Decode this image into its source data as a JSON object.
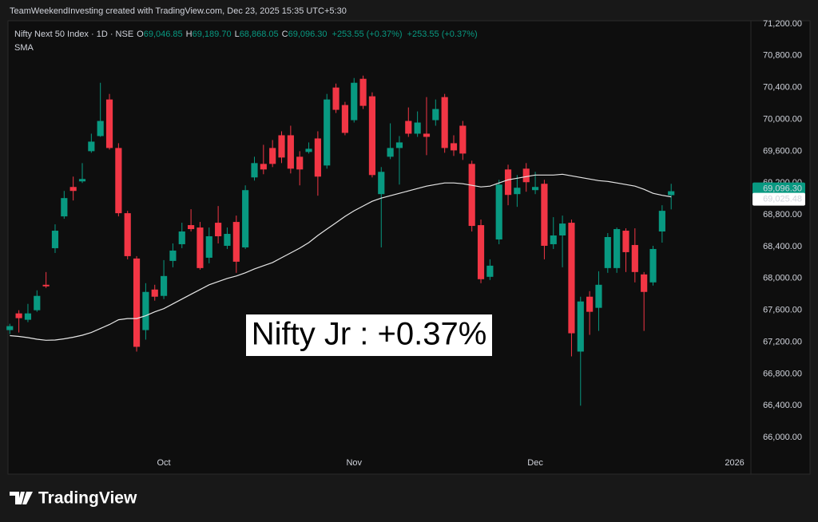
{
  "header": {
    "credit": "TeamWeekendInvesting created with TradingView.com, Dec 23, 2025 15:35 UTC+5:30"
  },
  "legend": {
    "symbol": "Nifty Next 50 Index · 1D · NSE",
    "open_label": "O",
    "open": "69,046.85",
    "high_label": "H",
    "high": "69,189.70",
    "low_label": "L",
    "low": "68,868.05",
    "close_label": "C",
    "close": "69,096.30",
    "change": "+253.55 (+0.37%)",
    "change_2": "+253.55 (+0.37%)"
  },
  "footer": {
    "brand": "TradingView"
  },
  "chart_data": {
    "type": "candlestick",
    "annotation": "Nifty Jr : +0.37%",
    "up_color": "#089981",
    "down_color": "#f23645",
    "open": [
      67350,
      67560,
      67480,
      67600,
      67920,
      68380,
      68780,
      69150,
      69220,
      69600,
      69790,
      70250,
      69640,
      68820,
      68250,
      67350,
      67860,
      67780,
      68220,
      68430,
      68670,
      68640,
      68260,
      68700,
      68410,
      68710,
      68390,
      69270,
      69440,
      69640,
      69800,
      69800,
      69530,
      69590,
      69760,
      69420,
      70400,
      70180,
      69990,
      70510,
      70290,
      69060,
      69530,
      69640,
      69980,
      69820,
      69820,
      69990,
      70280,
      69700,
      69920,
      69440,
      68670,
      68020,
      68490,
      69370,
      69060,
      69380,
      69110,
      69190,
      68430,
      68540,
      68700,
      67080,
      67770,
      67630,
      68130,
      68130,
      68600,
      68420,
      68050,
      67950,
      68590,
      69046.85
    ],
    "high": [
      67430,
      67600,
      67680,
      67850,
      68080,
      68680,
      69100,
      69280,
      69450,
      69820,
      70460,
      70320,
      69700,
      68850,
      68280,
      67940,
      67920,
      68230,
      68440,
      68700,
      68870,
      68710,
      68640,
      68910,
      68640,
      68790,
      69170,
      69530,
      69680,
      69740,
      69850,
      69920,
      69600,
      69710,
      69850,
      70320,
      70450,
      70220,
      70520,
      70550,
      70340,
      69400,
      69950,
      69790,
      70150,
      70100,
      70280,
      70250,
      70320,
      69800,
      69980,
      69480,
      68740,
      68240,
      69240,
      69430,
      69300,
      69450,
      69340,
      69240,
      68770,
      68790,
      68740,
      67770,
      67840,
      68090,
      68570,
      68640,
      68630,
      68630,
      68080,
      68410,
      68920,
      69189.7
    ],
    "low": [
      67300,
      67320,
      67450,
      67580,
      67880,
      68320,
      68750,
      68980,
      69200,
      69580,
      69780,
      69620,
      68780,
      68240,
      67080,
      67230,
      67720,
      67740,
      68140,
      68380,
      68590,
      68110,
      68190,
      68440,
      68370,
      68070,
      68370,
      69230,
      69310,
      69400,
      69450,
      69320,
      69170,
      69570,
      69040,
      69380,
      70080,
      69800,
      69960,
      70130,
      69270,
      68390,
      69500,
      69180,
      69780,
      69780,
      69550,
      69920,
      69580,
      69540,
      69490,
      68590,
      67940,
      67980,
      68430,
      68920,
      68900,
      69090,
      69060,
      68240,
      68370,
      68140,
      67020,
      66400,
      67290,
      67340,
      68070,
      68070,
      68080,
      67950,
      67340,
      67910,
      68450,
      68868.05
    ],
    "close": [
      67400,
      67500,
      67560,
      67780,
      67900,
      68600,
      69010,
      69100,
      69250,
      69720,
      69980,
      69640,
      68820,
      68280,
      67140,
      67830,
      67770,
      68030,
      68350,
      68590,
      68620,
      68130,
      68530,
      68530,
      68560,
      68210,
      69110,
      69450,
      69370,
      69440,
      69520,
      69380,
      69370,
      69630,
      69280,
      70250,
      70120,
      69830,
      70460,
      70170,
      69300,
      69340,
      69640,
      69710,
      69820,
      69960,
      69780,
      70130,
      69640,
      69610,
      69570,
      68660,
      67990,
      68160,
      69180,
      69050,
      69140,
      69210,
      69150,
      68410,
      68540,
      68690,
      67310,
      67710,
      67580,
      67920,
      68520,
      68620,
      68330,
      68080,
      67830,
      68370,
      68850,
      69096.3
    ],
    "series": [
      {
        "name": "SMA",
        "color": "#e6e6e6",
        "values": [
          67280,
          67270,
          67255,
          67235,
          67222,
          67225,
          67240,
          67260,
          67285,
          67320,
          67370,
          67420,
          67480,
          67495,
          67495,
          67530,
          67580,
          67620,
          67680,
          67740,
          67800,
          67860,
          67920,
          67960,
          68000,
          68030,
          68070,
          68120,
          68160,
          68200,
          68260,
          68320,
          68380,
          68450,
          68540,
          68620,
          68700,
          68780,
          68850,
          68910,
          68970,
          69010,
          69040,
          69070,
          69100,
          69130,
          69160,
          69180,
          69200,
          69200,
          69190,
          69170,
          69150,
          69160,
          69200,
          69240,
          69260,
          69280,
          69300,
          69300,
          69300,
          69310,
          69290,
          69270,
          69250,
          69230,
          69220,
          69200,
          69180,
          69160,
          69120,
          69070,
          69045,
          69025.48
        ]
      }
    ],
    "last_labels": [
      {
        "value": 69096.3,
        "label": "69,096.30",
        "color": "#089981"
      },
      {
        "value": 69025.48,
        "label": "69,025.48",
        "color": "#ffffff"
      }
    ],
    "xlim": [
      -0.2,
      81.8
    ],
    "xticks": [
      {
        "value": 17,
        "label": "Oct"
      },
      {
        "value": 38,
        "label": "Nov"
      },
      {
        "value": 58,
        "label": "Dec"
      },
      {
        "value": 80,
        "label": "2026"
      }
    ],
    "ylim": [
      65800,
      71250
    ],
    "yticks": [
      {
        "value": 66000,
        "label": "66,000.00"
      },
      {
        "value": 66400,
        "label": "66,400.00"
      },
      {
        "value": 66800,
        "label": "66,800.00"
      },
      {
        "value": 67200,
        "label": "67,200.00"
      },
      {
        "value": 67600,
        "label": "67,600.00"
      },
      {
        "value": 68000,
        "label": "68,000.00"
      },
      {
        "value": 68400,
        "label": "68,400.00"
      },
      {
        "value": 68800,
        "label": "68,800.00"
      },
      {
        "value": 69200,
        "label": "69,200.00"
      },
      {
        "value": 69600,
        "label": "69,600.00"
      },
      {
        "value": 70000,
        "label": "70,000.00"
      },
      {
        "value": 70400,
        "label": "70,400.00"
      },
      {
        "value": 70800,
        "label": "70,800.00"
      },
      {
        "value": 71200,
        "label": "71,200.00"
      }
    ],
    "grid": false
  }
}
